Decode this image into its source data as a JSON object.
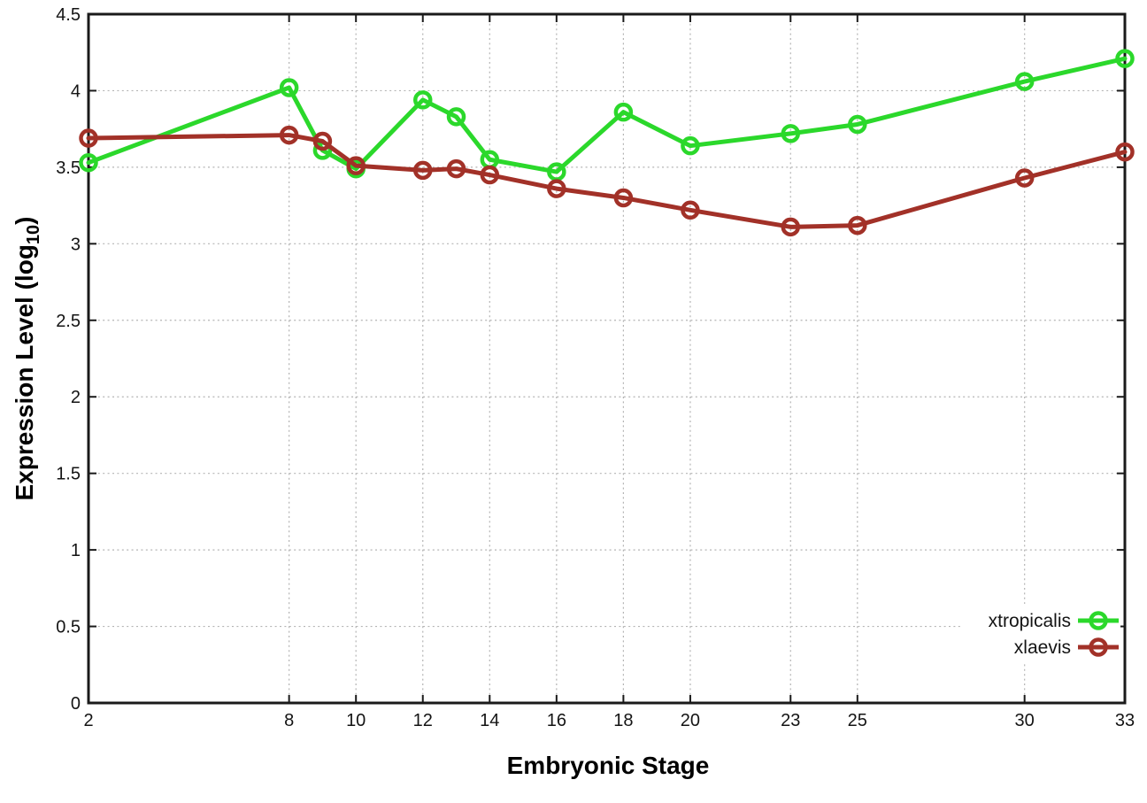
{
  "chart_data": {
    "type": "line",
    "xlabel": "Embryonic Stage",
    "ylabel_parts": {
      "pre": "Expression Level (log",
      "sub": "10",
      "post": ")"
    },
    "x": [
      2,
      8,
      9,
      10,
      12,
      13,
      14,
      16,
      18,
      20,
      23,
      25,
      30,
      33
    ],
    "series": [
      {
        "name": "xtropicalis",
        "color": "#2bd82b",
        "values": [
          3.53,
          4.02,
          3.61,
          3.49,
          3.94,
          3.83,
          3.55,
          3.47,
          3.86,
          3.64,
          3.72,
          3.78,
          4.06,
          4.21
        ]
      },
      {
        "name": "xlaevis",
        "color": "#a23128",
        "values": [
          3.69,
          3.71,
          3.67,
          3.51,
          3.48,
          3.49,
          3.45,
          3.36,
          3.3,
          3.22,
          3.11,
          3.12,
          3.43,
          3.6
        ]
      }
    ],
    "xlim": [
      2,
      33
    ],
    "ylim": [
      0,
      4.5
    ],
    "xticks": [
      2,
      8,
      10,
      12,
      14,
      16,
      18,
      20,
      23,
      25,
      30,
      33
    ],
    "yticks": [
      0,
      0.5,
      1,
      1.5,
      2,
      2.5,
      3,
      3.5,
      4,
      4.5
    ],
    "ytick_labels": [
      "0",
      "0.5",
      "1",
      "1.5",
      "2",
      "2.5",
      "3",
      "3.5",
      "4",
      "4.5"
    ],
    "grid": true,
    "legend_position": "inside-bottom-right",
    "marker": "open-circle",
    "background": "#ffffff",
    "axis_color": "#1a1a1a",
    "grid_color": "#b4b4b4"
  }
}
